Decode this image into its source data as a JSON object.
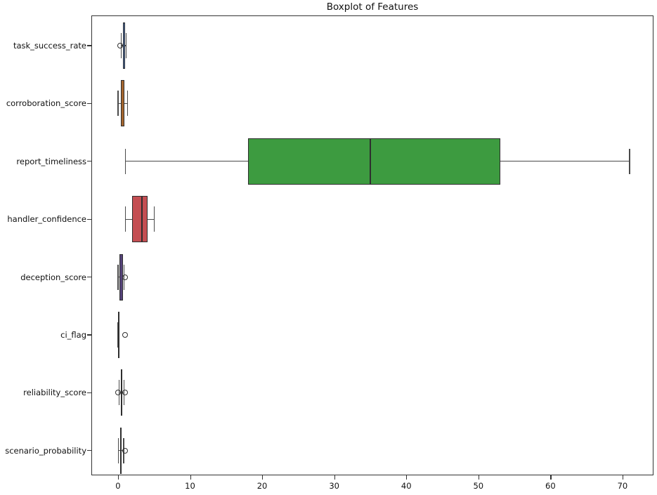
{
  "chart_data": {
    "type": "boxplot",
    "orientation": "horizontal",
    "title": "Boxplot of Features",
    "xlabel": "",
    "ylabel": "",
    "grid": false,
    "legend": false,
    "xlim": [
      -3.7,
      74.3
    ],
    "x_ticks": [
      0,
      10,
      20,
      30,
      40,
      50,
      60,
      70
    ],
    "styles": {
      "box_border": "#2e2e2e",
      "median_color": "#2e2e2e",
      "whisker_color": "#4a4a4a",
      "outlier_edge": "#2e2e2e",
      "spine_color": "#333333"
    },
    "features": [
      {
        "label": "task_success_rate",
        "color": "#4c72b0",
        "whislo": 0.45,
        "q1": 0.72,
        "med": 0.85,
        "q3": 0.95,
        "whishi": 1.15,
        "outliers": [
          0.3
        ]
      },
      {
        "label": "corroboration_score",
        "color": "#a5662f",
        "whislo": 0.0,
        "q1": 0.4,
        "med": 0.65,
        "q3": 0.85,
        "whishi": 1.3,
        "outliers": []
      },
      {
        "label": "report_timeliness",
        "color": "#3d9b40",
        "whislo": 1.0,
        "q1": 18.0,
        "med": 35.0,
        "q3": 53.0,
        "whishi": 71.0,
        "outliers": []
      },
      {
        "label": "handler_confidence",
        "color": "#c44e52",
        "whislo": 1.0,
        "q1": 2.0,
        "med": 3.3,
        "q3": 4.1,
        "whishi": 5.0,
        "outliers": []
      },
      {
        "label": "deception_score",
        "color": "#55437a",
        "whislo": 0.0,
        "q1": 0.2,
        "med": 0.4,
        "q3": 0.65,
        "whishi": 0.85,
        "outliers": [
          1.0
        ]
      },
      {
        "label": "ci_flag",
        "color": "#8c564b",
        "whislo": 0.0,
        "q1": 0.0,
        "med": 0.0,
        "q3": 0.0,
        "whishi": 0.0,
        "outliers": [
          1.0
        ]
      },
      {
        "label": "reliability_score",
        "color": "#d77fbe",
        "whislo": 0.15,
        "q1": 0.4,
        "med": 0.5,
        "q3": 0.62,
        "whishi": 0.85,
        "outliers": [
          0.02,
          1.0
        ]
      },
      {
        "label": "scenario_probability",
        "color": "#7f7f7f",
        "whislo": 0.05,
        "q1": 0.25,
        "med": 0.35,
        "q3": 0.5,
        "whishi": 0.8,
        "outliers": [
          1.0
        ]
      }
    ]
  }
}
